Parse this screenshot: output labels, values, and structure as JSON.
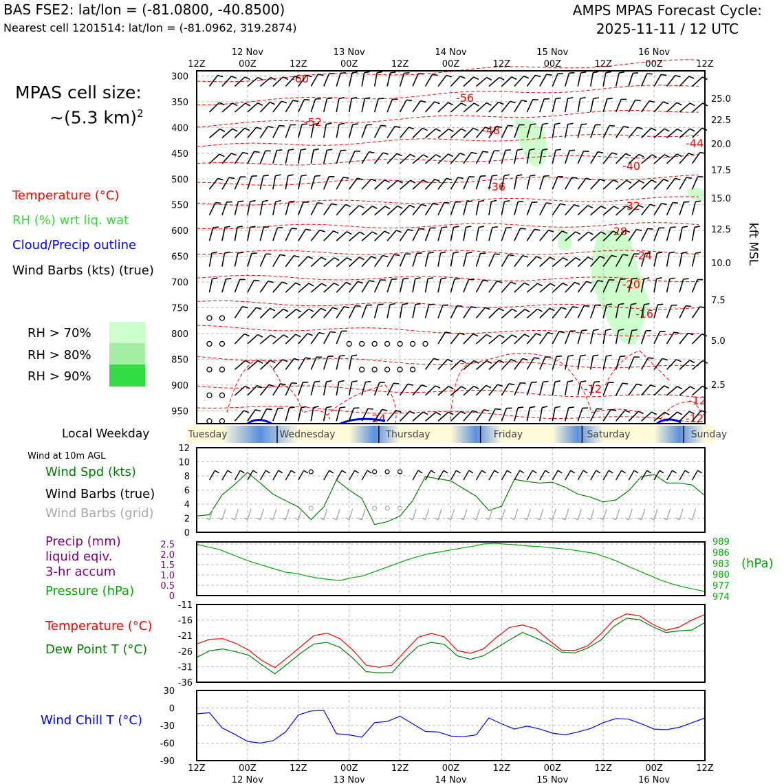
{
  "header": {
    "station_line": "BAS FSE2: lat/lon = (-81.0800, -40.8500)",
    "nearest_cell_line": "Nearest cell 1201514: lat/lon = (-81.0962, 319.2874)",
    "product_line1": "AMPS MPAS Forecast Cycle:",
    "product_line2": "2025-11-11 / 12 UTC"
  },
  "cell_size": {
    "line1": "MPAS cell size:",
    "line2": "~(5.3 km)",
    "sup": "2"
  },
  "legend_upper": {
    "temperature": {
      "label": "Temperature (°C)",
      "color": "#ff0000"
    },
    "rh": {
      "label": "RH (%) wrt liq. wat",
      "color": "#33dd33"
    },
    "cloud": {
      "label": "Cloud/Precip outline",
      "color": "#0000ff"
    },
    "wind": {
      "label": "Wind Barbs (kts) (true)",
      "color": "#000000"
    },
    "rh_levels": [
      {
        "label": "RH > 70%",
        "color": "#ccffcc"
      },
      {
        "label": "RH > 80%",
        "color": "#a3eea3"
      },
      {
        "label": "RH > 90%",
        "color": "#33dd44"
      }
    ]
  },
  "weekday": {
    "label": "Local Weekday",
    "days": [
      "Tuesday",
      "Wednesday",
      "Thursday",
      "Friday",
      "Saturday",
      "Sunday"
    ]
  },
  "legend_wind10m": {
    "header": "Wind at 10m AGL",
    "spd": {
      "label": "Wind Spd (kts)",
      "color": "#008000"
    },
    "barbs_true": {
      "label": "Wind Barbs (true)",
      "color": "#000000"
    },
    "barbs_grid": {
      "label": "Wind Barbs (grid)",
      "color": "#aaaaaa"
    }
  },
  "legend_precip": {
    "line1": "Precip (mm)",
    "line2": "liquid eqiv.",
    "line3": "3-hr accum",
    "color": "#800080",
    "pressure": {
      "label": "Pressure (hPa)",
      "color": "#00aa00"
    },
    "right_unit": "(hPa)"
  },
  "legend_temp": {
    "temp": {
      "label": "Temperature (°C)",
      "color": "#ff0000"
    },
    "dew": {
      "label": "Dew Point T (°C)",
      "color": "#008000"
    }
  },
  "legend_chill": {
    "label": "Wind Chill T (°C)",
    "color": "#0000ff"
  },
  "chart_data": [
    {
      "type": "time-height",
      "x_tick_labels": [
        "12Z",
        "00Z",
        "12Z",
        "00Z",
        "12Z",
        "00Z",
        "12Z",
        "00Z",
        "12Z",
        "00Z",
        "12Z"
      ],
      "date_labels": [
        "12 Nov",
        "13 Nov",
        "14 Nov",
        "15 Nov",
        "16 Nov"
      ],
      "y_ticks_hpa": [
        "300",
        "350",
        "400",
        "450",
        "500",
        "550",
        "600",
        "650",
        "700",
        "750",
        "800",
        "850",
        "900",
        "950"
      ],
      "y_ticks_kft": [
        "25.0",
        "22.5",
        "20.0",
        "17.5",
        "15.0",
        "12.5",
        "10.0",
        "7.5",
        "5.0",
        "2.5"
      ],
      "y_right_label": "kft MSL",
      "temperature_contour_labels": [
        "-60",
        "-56",
        "-52",
        "-48",
        "-44",
        "-40",
        "-36",
        "-32",
        "-28",
        "-24",
        "-20",
        "-16",
        "-12",
        "-12",
        "-12",
        "-24"
      ]
    },
    {
      "type": "line",
      "yticks": [
        "0",
        "2",
        "4",
        "6",
        "8",
        "10",
        "12"
      ],
      "ylim": [
        0,
        12
      ],
      "x_hours": [
        0,
        3,
        6,
        9,
        12,
        15,
        18,
        21,
        24,
        27,
        30,
        33,
        36,
        39,
        42,
        45,
        48,
        51,
        54,
        57,
        60,
        63,
        66,
        69,
        72,
        75,
        78,
        81,
        84,
        87,
        90,
        93,
        96,
        99,
        102,
        105,
        108,
        111,
        114,
        117,
        120
      ],
      "series": [
        {
          "values": [
            2.3,
            2.5,
            5.3,
            6.8,
            8.5,
            7.0,
            5.4,
            4.5,
            3.6,
            1.8,
            3.6,
            7.4,
            6.0,
            4.8,
            1.1,
            1.5,
            2.3,
            4.5,
            7.9,
            7.6,
            7.3,
            6.2,
            5.1,
            3.1,
            3.7,
            7.5,
            7.2,
            7.0,
            7.1,
            6.4,
            5.4,
            5.0,
            4.3,
            4.6,
            5.9,
            7.9,
            8.2,
            7.0,
            7.0,
            6.7,
            5.2
          ]
        }
      ]
    },
    {
      "type": "line",
      "left_ticks": [
        "0",
        "0.5",
        "1.0",
        "1.5",
        "2.0",
        "2.5"
      ],
      "right_ticks": [
        "974",
        "977",
        "980",
        "983",
        "986",
        "989"
      ],
      "ylim": [
        974,
        990
      ],
      "series": [
        {
          "values": [
            989.3,
            988.5,
            987.8,
            986.5,
            985.2,
            984.0,
            983.0,
            982.0,
            981.0,
            980.6,
            979.8,
            979.2,
            978.8,
            978.5,
            979.3,
            979.8,
            981.0,
            982.2,
            983.4,
            984.6,
            985.6,
            986.5,
            987.0,
            987.6,
            988.2,
            988.7,
            989.4,
            989.6,
            989.3,
            989.1,
            988.8,
            988.6,
            988.3,
            988.0,
            987.6,
            987.1,
            986.6,
            985.5,
            984.3,
            982.8,
            981.4,
            980.0,
            978.6,
            977.5,
            976.6,
            975.9,
            975.2
          ]
        },
        {
          "values": [
            0,
            0,
            0,
            0,
            0,
            0,
            0,
            0,
            0,
            0,
            0,
            0,
            0,
            0,
            0,
            0,
            0,
            0,
            0,
            0,
            0,
            0,
            0,
            0,
            0,
            0,
            0,
            0,
            0,
            0,
            0,
            0,
            0,
            0,
            0,
            0,
            0,
            0,
            0,
            0,
            0,
            0,
            0,
            0,
            0,
            0,
            0
          ]
        }
      ]
    },
    {
      "type": "line",
      "yticks": [
        "-36",
        "-31",
        "-26",
        "-21",
        "-16",
        "-11"
      ],
      "ylim": [
        -36,
        -11
      ],
      "series": [
        {
          "values": [
            -23.7,
            -22.2,
            -22.0,
            -23.5,
            -25.7,
            -29.0,
            -31.3,
            -28.0,
            -24.5,
            -21.0,
            -20.2,
            -22.0,
            -25.7,
            -30.5,
            -31.2,
            -30.5,
            -26.0,
            -21.5,
            -20.3,
            -21.4,
            -25.8,
            -26.7,
            -25.3,
            -21.6,
            -18.4,
            -17.6,
            -18.8,
            -22.4,
            -25.7,
            -25.8,
            -24.3,
            -20.5,
            -16.0,
            -14.0,
            -14.7,
            -17.4,
            -19.3,
            -18.3,
            -16.0,
            -14.2
          ]
        },
        {
          "values": [
            -28.0,
            -25.9,
            -25.3,
            -26.2,
            -27.3,
            -30.4,
            -33.3,
            -30.0,
            -26.6,
            -23.7,
            -23.2,
            -24.8,
            -28.3,
            -32.6,
            -33.0,
            -32.9,
            -28.3,
            -24.4,
            -23.2,
            -23.8,
            -27.5,
            -28.6,
            -27.5,
            -25.0,
            -22.4,
            -20.0,
            -21.7,
            -23.7,
            -26.3,
            -26.6,
            -25.0,
            -22.5,
            -18.1,
            -15.4,
            -15.9,
            -18.2,
            -20.0,
            -19.5,
            -19.2,
            -16.8
          ]
        }
      ]
    },
    {
      "type": "line",
      "yticks": [
        "-90",
        "-60",
        "-30",
        "0",
        "30"
      ],
      "ylim": [
        -90,
        30
      ],
      "x_tick_labels": [
        "12Z",
        "00Z",
        "12Z",
        "00Z",
        "12Z",
        "00Z",
        "12Z",
        "00Z",
        "12Z",
        "00Z",
        "12Z"
      ],
      "date_labels": [
        "12 Nov",
        "13 Nov",
        "14 Nov",
        "15 Nov",
        "16 Nov"
      ],
      "series": [
        {
          "values": [
            -10,
            -8,
            -34,
            -45,
            -57,
            -60,
            -56,
            -41,
            -12,
            -5,
            -4,
            -44,
            -46,
            -50,
            -25,
            -23,
            -14,
            -27,
            -40,
            -41,
            -48,
            -49,
            -46,
            -17,
            -27,
            -36,
            -31,
            -36,
            -43,
            -46,
            -41,
            -35,
            -25,
            -18,
            -19,
            -27,
            -36,
            -37,
            -33,
            -25,
            -17
          ]
        }
      ]
    }
  ]
}
